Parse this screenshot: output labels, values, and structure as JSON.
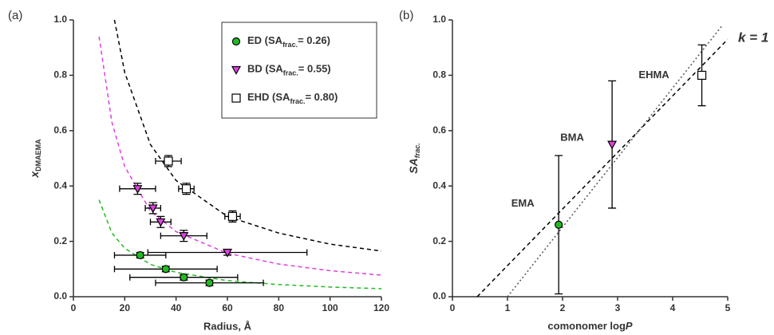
{
  "chart_data": [
    {
      "type": "scatter",
      "panel": "(a)",
      "xlabel": "Radius, Å",
      "ylabel": [
        "x",
        "DMAEMA"
      ],
      "xlim": [
        0,
        120
      ],
      "xticks": [
        0,
        20,
        40,
        60,
        80,
        100,
        120
      ],
      "ylim": [
        0,
        1
      ],
      "yticks": [
        {
          "value": 0,
          "label": "0.0"
        },
        0.2,
        0.4,
        0.6,
        0.8,
        {
          "value": 1,
          "label": "1.0"
        }
      ],
      "legend": "upper right",
      "series": [
        {
          "name": [
            "ED (SA",
            "frac.",
            "= 0.26)"
          ],
          "color": "#22bb22",
          "marker": "circle",
          "x": [
            26,
            36,
            43,
            53
          ],
          "values": [
            0.15,
            0.1,
            0.07,
            0.05
          ],
          "xerr": [
            10,
            20,
            21,
            21
          ],
          "yerr": [
            0.01,
            0.01,
            0.01,
            0.01
          ]
        },
        {
          "name": [
            "BD (SA",
            "frac.",
            "= 0.55)"
          ],
          "color": "#e040e0",
          "marker": "triangle-down",
          "x": [
            25,
            31,
            34,
            43,
            60
          ],
          "values": [
            0.39,
            0.32,
            0.27,
            0.22,
            0.16
          ],
          "xerr": [
            7,
            3,
            4,
            9,
            31
          ],
          "yerr": [
            0.02,
            0.02,
            0.02,
            0.02,
            0.01
          ]
        },
        {
          "name": [
            "EHD (SA",
            "frac.",
            "= 0.80)"
          ],
          "color": "#000000",
          "marker": "square",
          "x": [
            37,
            44,
            62
          ],
          "values": [
            0.49,
            0.39,
            0.29
          ],
          "xerr": [
            5,
            3,
            3
          ],
          "yerr": [
            0.02,
            0.02,
            0.02
          ]
        }
      ],
      "lines": [
        {
          "color": "#22bb22",
          "style": "dashed",
          "x": [
            10,
            15,
            20,
            30,
            40,
            60,
            80,
            100,
            120
          ],
          "y": [
            0.35,
            0.23,
            0.175,
            0.117,
            0.088,
            0.058,
            0.044,
            0.035,
            0.029
          ]
        },
        {
          "color": "#e040e0",
          "style": "dashed",
          "x": [
            10,
            15,
            20,
            30,
            40,
            60,
            80,
            100,
            120
          ],
          "y": [
            0.94,
            0.63,
            0.47,
            0.31,
            0.235,
            0.157,
            0.118,
            0.094,
            0.078
          ]
        },
        {
          "color": "#000000",
          "style": "dashed",
          "x": [
            16,
            20,
            30,
            40,
            60,
            80,
            100,
            120
          ],
          "y": [
            1.0,
            0.81,
            0.55,
            0.42,
            0.29,
            0.23,
            0.19,
            0.165
          ]
        }
      ]
    },
    {
      "type": "scatter",
      "panel": "(b)",
      "xlabel": [
        "comonomer log",
        "P"
      ],
      "ylabel": [
        "SA",
        "frac."
      ],
      "xlim": [
        0,
        5
      ],
      "xticks": [
        0,
        1,
        2,
        3,
        4,
        5
      ],
      "ylim": [
        0,
        1
      ],
      "yticks": [
        {
          "value": 0,
          "label": "0.0"
        },
        0.2,
        0.4,
        0.6,
        0.8,
        {
          "value": 1,
          "label": "1.0"
        }
      ],
      "annotation": "k = 1",
      "series": [
        {
          "name": "EMA",
          "color": "#22bb22",
          "marker": "circle",
          "x": [
            1.93
          ],
          "values": [
            0.26
          ],
          "yerr": [
            0.25
          ]
        },
        {
          "name": "BMA",
          "color": "#e040e0",
          "marker": "triangle-down",
          "x": [
            2.9
          ],
          "values": [
            0.55
          ],
          "yerr": [
            0.23
          ]
        },
        {
          "name": "EHMA",
          "color": "#000000",
          "marker": "square",
          "x": [
            4.53
          ],
          "values": [
            0.8
          ],
          "yerr": [
            0.11
          ]
        }
      ],
      "lines": [
        {
          "color": "#000000",
          "style": "dashed",
          "x": [
            0.45,
            5
          ],
          "y": [
            0,
            0.93
          ]
        },
        {
          "color": "#555555",
          "style": "dotted",
          "x": [
            1,
            4.9
          ],
          "y": [
            0,
            0.98
          ]
        }
      ]
    }
  ]
}
